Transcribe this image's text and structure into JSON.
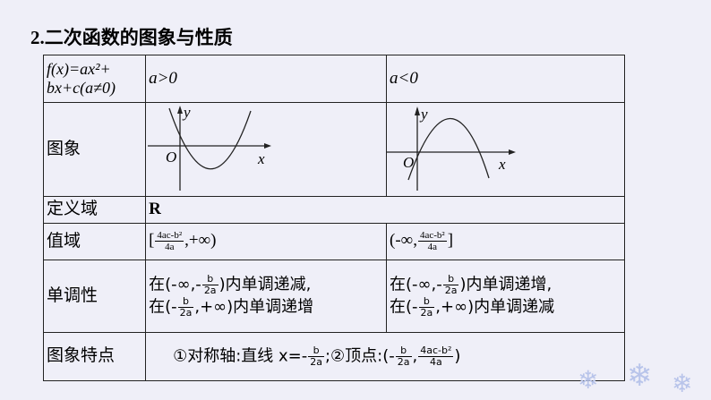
{
  "title": {
    "number": "2.",
    "text": "二次函数的图象与性质"
  },
  "table": {
    "header": {
      "func_line1": "f(x)=ax²+",
      "func_line2": "bx+c(a≠0)",
      "pos": "a>0",
      "neg": "a<0"
    },
    "graph_row": {
      "label": "图象",
      "axis_y": "y",
      "axis_x": "x",
      "origin": "O"
    },
    "domain_row": {
      "label": "定义域",
      "value": "R"
    },
    "range_row": {
      "label": "值域",
      "pos_open": "[",
      "pos_num": "4ac-b²",
      "pos_den": "4a",
      "pos_close": ",+∞)",
      "neg_open": "(-∞,",
      "neg_num": "4ac-b²",
      "neg_den": "4a",
      "neg_close": "]"
    },
    "mono_row": {
      "label": "单调性",
      "pos_l1_pre": "在(-∞,-",
      "pos_l1_num": "b",
      "pos_l1_den": "2a",
      "pos_l1_post": ")内单调递减,",
      "pos_l2_pre": "在(-",
      "pos_l2_num": "b",
      "pos_l2_den": "2a",
      "pos_l2_post": ",+∞)内单调递增",
      "neg_l1_pre": "在(-∞,-",
      "neg_l1_num": "b",
      "neg_l1_den": "2a",
      "neg_l1_post": ")内单调递增,",
      "neg_l2_pre": "在(-",
      "neg_l2_num": "b",
      "neg_l2_den": "2a",
      "neg_l2_post": ",+∞)内单调递减"
    },
    "feature_row": {
      "label": "图象特点",
      "axis_text": "①对称轴:直线 x=-",
      "axis_num": "b",
      "axis_den": "2a",
      "vertex_text": ";②顶点:(-",
      "v_num1": "b",
      "v_den1": "2a",
      "comma": ",",
      "v_num2": "4ac-b²",
      "v_den2": "4a",
      "close": ")"
    }
  }
}
